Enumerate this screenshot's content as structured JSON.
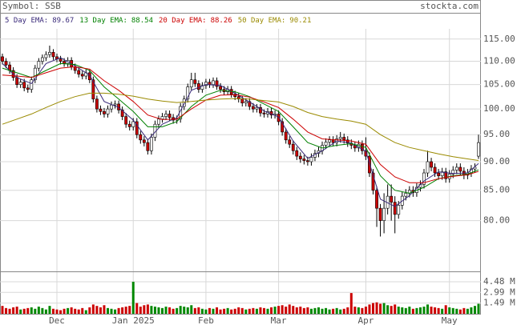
{
  "chart_data": {
    "type": "candlestick",
    "symbol_label": "Symbol: SSB",
    "source": "stockta.com",
    "log_scale": true,
    "grid": true,
    "up_body_color": "#ffffff",
    "down_color": "#cc0000",
    "up_volume_color": "#008800",
    "ylim": [
      72.4,
      117
    ],
    "yticks": [
      {
        "value": 115,
        "label": "115.00"
      },
      {
        "value": 110,
        "label": "110.00"
      },
      {
        "value": 105,
        "label": "105.00"
      },
      {
        "value": 100,
        "label": "100.00"
      },
      {
        "value": 95,
        "label": "95.00"
      },
      {
        "value": 90,
        "label": "90.00"
      },
      {
        "value": 85,
        "label": "85.00"
      },
      {
        "value": 80,
        "label": "80.00"
      }
    ],
    "volume_ylim": [
      0,
      5.82
    ],
    "volume_yticks": [
      {
        "value": 4.48,
        "label": "4.48 M"
      },
      {
        "value": 2.99,
        "label": "2.99 M"
      },
      {
        "value": 1.49,
        "label": "1.49 M"
      }
    ],
    "categories": [
      null,
      null,
      null,
      null,
      null,
      null,
      null,
      null,
      null,
      null,
      null,
      null,
      null,
      null,
      null,
      "Dec",
      null,
      null,
      null,
      null,
      null,
      null,
      null,
      null,
      null,
      null,
      null,
      null,
      null,
      null,
      null,
      null,
      null,
      null,
      null,
      null,
      "Jan 2025",
      null,
      null,
      null,
      null,
      null,
      null,
      null,
      null,
      null,
      null,
      null,
      null,
      null,
      null,
      null,
      null,
      null,
      null,
      null,
      "Feb",
      null,
      null,
      null,
      null,
      null,
      null,
      null,
      null,
      null,
      null,
      null,
      null,
      null,
      null,
      null,
      null,
      null,
      null,
      null,
      "Mar",
      null,
      null,
      null,
      null,
      null,
      null,
      null,
      null,
      null,
      null,
      null,
      null,
      null,
      null,
      null,
      null,
      null,
      null,
      null,
      null,
      null,
      null,
      null,
      "Apr",
      null,
      null,
      null,
      null,
      null,
      null,
      null,
      null,
      null,
      null,
      null,
      null,
      null,
      null,
      null,
      null,
      null,
      null,
      null,
      null,
      null,
      null,
      "May",
      null,
      null,
      null,
      null,
      null,
      null,
      null,
      null
    ],
    "open": [
      111,
      110,
      109.2,
      108,
      106.5,
      105,
      105.5,
      104.3,
      104,
      106,
      108.5,
      110,
      110.8,
      111.5,
      112,
      111,
      110.5,
      110,
      109.5,
      110.2,
      108.8,
      108,
      107.2,
      106.8,
      107.5,
      106,
      102,
      100,
      99.5,
      99,
      100,
      100.8,
      101,
      99.8,
      98.5,
      97,
      96.5,
      97.5,
      95,
      94,
      93.5,
      92,
      94.5,
      97,
      98,
      98.5,
      99,
      98.3,
      97.8,
      98,
      100.5,
      102,
      104.5,
      106,
      105.2,
      104,
      104.8,
      105.5,
      105,
      105.8,
      104.6,
      104,
      103.5,
      104,
      103,
      102.5,
      102,
      101.2,
      101.5,
      100.5,
      100,
      100.3,
      99.2,
      99,
      99.5,
      98.8,
      99,
      97.5,
      95.5,
      94,
      93.2,
      92,
      91,
      90.5,
      90.2,
      90,
      90.8,
      91.5,
      92,
      93,
      93.6,
      94,
      93.5,
      94.2,
      94.5,
      94,
      93.4,
      93,
      92.5,
      93.2,
      92,
      91,
      88,
      85,
      82,
      80,
      82,
      84,
      83,
      81,
      82.5,
      84,
      84.5,
      85,
      84.6,
      85.5,
      86,
      88,
      90,
      89,
      88,
      87.5,
      88.2,
      87,
      87.8,
      88.5,
      89,
      88.3,
      87.6,
      88,
      88.7,
      91
    ],
    "high": [
      111.7,
      110.7,
      109.9,
      108.7,
      107.2,
      106.2,
      106.2,
      105,
      106.7,
      109.2,
      110.7,
      111.5,
      112.2,
      113.5,
      112.7,
      111.7,
      111.2,
      110.7,
      110.9,
      110.9,
      109.5,
      108.7,
      107.9,
      108.2,
      108.2,
      106.7,
      102.7,
      100.7,
      100.2,
      100.7,
      101.5,
      101.7,
      101.7,
      100.5,
      99.2,
      97.7,
      98.2,
      98.2,
      95.7,
      94.7,
      94.2,
      95.2,
      97.7,
      98.7,
      99.2,
      99.7,
      99.7,
      99,
      98.7,
      101.2,
      102.7,
      105.2,
      107.5,
      107.5,
      105.9,
      105.5,
      106.2,
      106.2,
      106.5,
      106.5,
      105.3,
      104.7,
      104.7,
      104.7,
      103.7,
      103.2,
      102.7,
      102.2,
      102.2,
      101.2,
      101,
      101,
      99.9,
      100.2,
      100.2,
      99.7,
      99.7,
      98.2,
      96.2,
      94.7,
      93.9,
      92.7,
      91.7,
      91.2,
      90.9,
      91.5,
      92.2,
      92.7,
      93.7,
      94.3,
      94.7,
      94.7,
      94.9,
      95.5,
      95.2,
      94.7,
      94.1,
      93.7,
      93.9,
      93.9,
      94.5,
      91.7,
      88.7,
      85.7,
      82.7,
      84.5,
      86,
      86,
      84,
      83.2,
      84.7,
      85.2,
      85.7,
      85.7,
      86.2,
      86.7,
      88.7,
      92,
      90.7,
      89.7,
      88.7,
      88.9,
      88.9,
      88.5,
      89.2,
      89.7,
      89.7,
      89,
      88.7,
      89.4,
      89.7,
      95
    ],
    "low": [
      109.3,
      108.5,
      107.3,
      105.8,
      104.3,
      104.3,
      103.6,
      103.3,
      103.3,
      105.3,
      107.8,
      109.3,
      110.1,
      110.8,
      110.3,
      109.8,
      109.3,
      108.8,
      108.8,
      108.1,
      107.3,
      106.5,
      106.1,
      106.1,
      105.3,
      101.3,
      99.3,
      98.8,
      98.3,
      98.3,
      99.3,
      100.1,
      99.1,
      97.8,
      96.3,
      95.8,
      95.8,
      94.3,
      93.3,
      92.8,
      91.3,
      91.3,
      93.8,
      96.3,
      97.3,
      97.8,
      97.6,
      97.1,
      97.1,
      97.3,
      99.8,
      101.3,
      103.8,
      104.5,
      103.3,
      103.3,
      104.1,
      104.3,
      104.3,
      103.9,
      103.3,
      102.8,
      102.8,
      102.3,
      101.8,
      101.3,
      100.5,
      100.5,
      99.8,
      99.3,
      99.3,
      98.5,
      98.3,
      98.3,
      98.1,
      98.1,
      96.8,
      94.8,
      93.3,
      92.5,
      91.3,
      90.3,
      89.8,
      89.5,
      89.3,
      89.3,
      90.1,
      90.8,
      91.3,
      92.3,
      92.9,
      92.8,
      92.8,
      93.5,
      93.3,
      92.7,
      92.3,
      91.8,
      91.8,
      91.3,
      90.3,
      87.3,
      84.3,
      79,
      77.5,
      78,
      81,
      80,
      78,
      80.3,
      81.8,
      83.3,
      83.8,
      83.9,
      83.9,
      84.8,
      85.3,
      87.3,
      88.3,
      87.3,
      86.8,
      86.8,
      86.3,
      86.3,
      87.1,
      87.8,
      87.6,
      86.9,
      86.9,
      87.3,
      88,
      90.5
    ],
    "close": [
      110,
      109.2,
      108,
      106.5,
      105,
      105.5,
      104.3,
      104,
      106,
      108.5,
      110,
      110.8,
      111.5,
      112,
      111,
      110.5,
      110,
      109.5,
      110.2,
      108.8,
      108,
      107.2,
      106.8,
      107.5,
      106,
      102,
      100,
      99.5,
      99,
      100,
      100.8,
      101,
      99.8,
      98.5,
      97,
      96.5,
      97.5,
      95,
      94,
      93.5,
      92,
      94.5,
      97,
      98,
      98.5,
      99,
      98.3,
      97.8,
      98,
      100.5,
      102,
      104.5,
      106,
      105.2,
      104,
      104.8,
      105.5,
      105,
      105.8,
      104.6,
      104,
      103.5,
      104,
      103,
      102.5,
      102,
      101.2,
      101.5,
      100.5,
      100,
      100.3,
      99.2,
      99,
      99.5,
      98.8,
      99,
      97.5,
      95.5,
      94,
      93.2,
      92,
      91,
      90.5,
      90.2,
      90,
      90.8,
      91.5,
      92,
      93,
      93.6,
      94,
      93.5,
      94.2,
      94.5,
      94,
      93.4,
      93,
      92.5,
      93.2,
      92,
      91,
      88,
      85,
      82,
      80,
      82,
      84,
      83,
      81,
      82.5,
      84,
      84.5,
      85,
      84.6,
      85.5,
      86,
      88,
      90,
      89,
      88,
      87.5,
      88.2,
      87,
      87.8,
      88.5,
      89,
      88.3,
      87.6,
      88,
      88.7,
      89,
      93.5
    ],
    "volume": [
      1.1,
      0.8,
      0.7,
      0.9,
      1.0,
      0.6,
      0.7,
      0.8,
      0.9,
      0.7,
      1.0,
      0.8,
      0.6,
      1.1,
      0.7,
      0.6,
      0.5,
      0.7,
      0.8,
      0.9,
      0.7,
      0.6,
      0.8,
      0.5,
      0.9,
      1.3,
      1.1,
      0.9,
      1.2,
      0.8,
      0.7,
      0.6,
      0.8,
      0.9,
      1.0,
      1.1,
      4.48,
      1.5,
      1.0,
      1.2,
      1.3,
      1.1,
      1.0,
      0.9,
      0.8,
      1.0,
      0.9,
      0.7,
      0.8,
      1.1,
      1.0,
      0.9,
      1.2,
      0.8,
      0.9,
      0.7,
      0.6,
      0.8,
      0.7,
      0.9,
      0.6,
      0.7,
      0.8,
      0.6,
      0.7,
      0.9,
      0.8,
      0.6,
      0.7,
      0.8,
      0.7,
      0.9,
      0.8,
      0.7,
      0.9,
      1.0,
      1.1,
      1.2,
      1.0,
      1.3,
      1.1,
      0.9,
      1.0,
      0.8,
      0.9,
      0.7,
      0.8,
      0.9,
      0.7,
      0.8,
      0.6,
      0.7,
      0.8,
      0.6,
      0.7,
      0.9,
      2.9,
      1.0,
      0.9,
      0.8,
      1.0,
      1.3,
      1.5,
      1.6,
      1.4,
      1.5,
      1.2,
      1.1,
      1.3,
      1.0,
      0.9,
      0.8,
      1.0,
      0.7,
      0.8,
      0.9,
      1.0,
      1.3,
      1.0,
      0.9,
      0.8,
      0.7,
      1.2,
      0.9,
      0.8,
      0.7,
      0.6,
      0.8,
      0.7,
      0.9,
      1.1,
      1.4
    ],
    "ema": [
      {
        "name": "5 Day EMA:",
        "current": 89.67,
        "color": "#3a2a7a",
        "x": [
          0,
          4,
          8,
          12,
          16,
          20,
          24,
          28,
          32,
          36,
          40,
          44,
          48,
          52,
          56,
          60,
          64,
          68,
          72,
          76,
          80,
          84,
          88,
          92,
          96,
          100,
          104,
          108,
          112,
          116,
          120,
          124,
          128,
          131
        ],
        "values": [
          109.5,
          106.5,
          105.2,
          109.5,
          110.8,
          109,
          107,
          101.5,
          100.3,
          97.8,
          94,
          97,
          98.3,
          103.8,
          105,
          104.8,
          103.2,
          101.4,
          99.6,
          98.4,
          93.8,
          90.6,
          92,
          93.8,
          93.4,
          91.9,
          83.5,
          82.3,
          84.1,
          86.6,
          88.2,
          87.9,
          88,
          89.67
        ]
      },
      {
        "name": "13 Day EMA:",
        "current": 88.54,
        "color": "#008000",
        "x": [
          0,
          4,
          8,
          12,
          16,
          20,
          24,
          28,
          32,
          36,
          40,
          44,
          48,
          52,
          56,
          60,
          64,
          68,
          72,
          76,
          80,
          84,
          88,
          92,
          96,
          100,
          104,
          108,
          112,
          116,
          120,
          124,
          128,
          131
        ],
        "values": [
          108.5,
          107.5,
          106.5,
          108,
          109.5,
          109.3,
          108,
          104.5,
          102,
          99.5,
          96.5,
          96.5,
          97.5,
          100.5,
          102.8,
          103.8,
          103.5,
          102.5,
          101,
          99.5,
          96.5,
          93.5,
          92.5,
          93,
          93.3,
          92.6,
          87.5,
          85,
          84.5,
          85.5,
          87,
          87.5,
          87.8,
          88.54
        ]
      },
      {
        "name": "20 Day EMA:",
        "current": 88.26,
        "color": "#cc0000",
        "x": [
          0,
          4,
          8,
          12,
          16,
          20,
          24,
          28,
          32,
          36,
          40,
          44,
          48,
          52,
          56,
          60,
          64,
          68,
          72,
          76,
          80,
          84,
          88,
          92,
          96,
          100,
          104,
          108,
          112,
          116,
          120,
          124,
          128,
          131
        ],
        "values": [
          107,
          106.8,
          106.5,
          107.5,
          108.5,
          108.8,
          108.3,
          105.8,
          103.8,
          101.5,
          98.8,
          97.9,
          98,
          100,
          101.8,
          102.8,
          102.9,
          102.4,
          101.4,
          100.3,
          98,
          95.5,
          94.2,
          94,
          93.8,
          93.2,
          89.5,
          87.3,
          86.3,
          86.3,
          87,
          87.4,
          87.7,
          88.26
        ]
      },
      {
        "name": "50 Day EMA:",
        "current": 90.21,
        "color": "#9a8a00",
        "x": [
          0,
          4,
          8,
          12,
          16,
          20,
          24,
          28,
          32,
          36,
          40,
          44,
          48,
          52,
          56,
          60,
          64,
          68,
          72,
          76,
          80,
          84,
          88,
          92,
          96,
          100,
          104,
          108,
          112,
          116,
          120,
          124,
          128,
          131
        ],
        "values": [
          97,
          98,
          99,
          100.3,
          101.5,
          102.5,
          103.2,
          103.2,
          103,
          102.6,
          102,
          101.6,
          101.3,
          101.5,
          101.8,
          102,
          102.1,
          102,
          101.7,
          101.4,
          100.5,
          99.3,
          98.5,
          98,
          97.6,
          97,
          95,
          93.5,
          92.6,
          92,
          91.4,
          90.9,
          90.5,
          90.21
        ]
      }
    ]
  }
}
